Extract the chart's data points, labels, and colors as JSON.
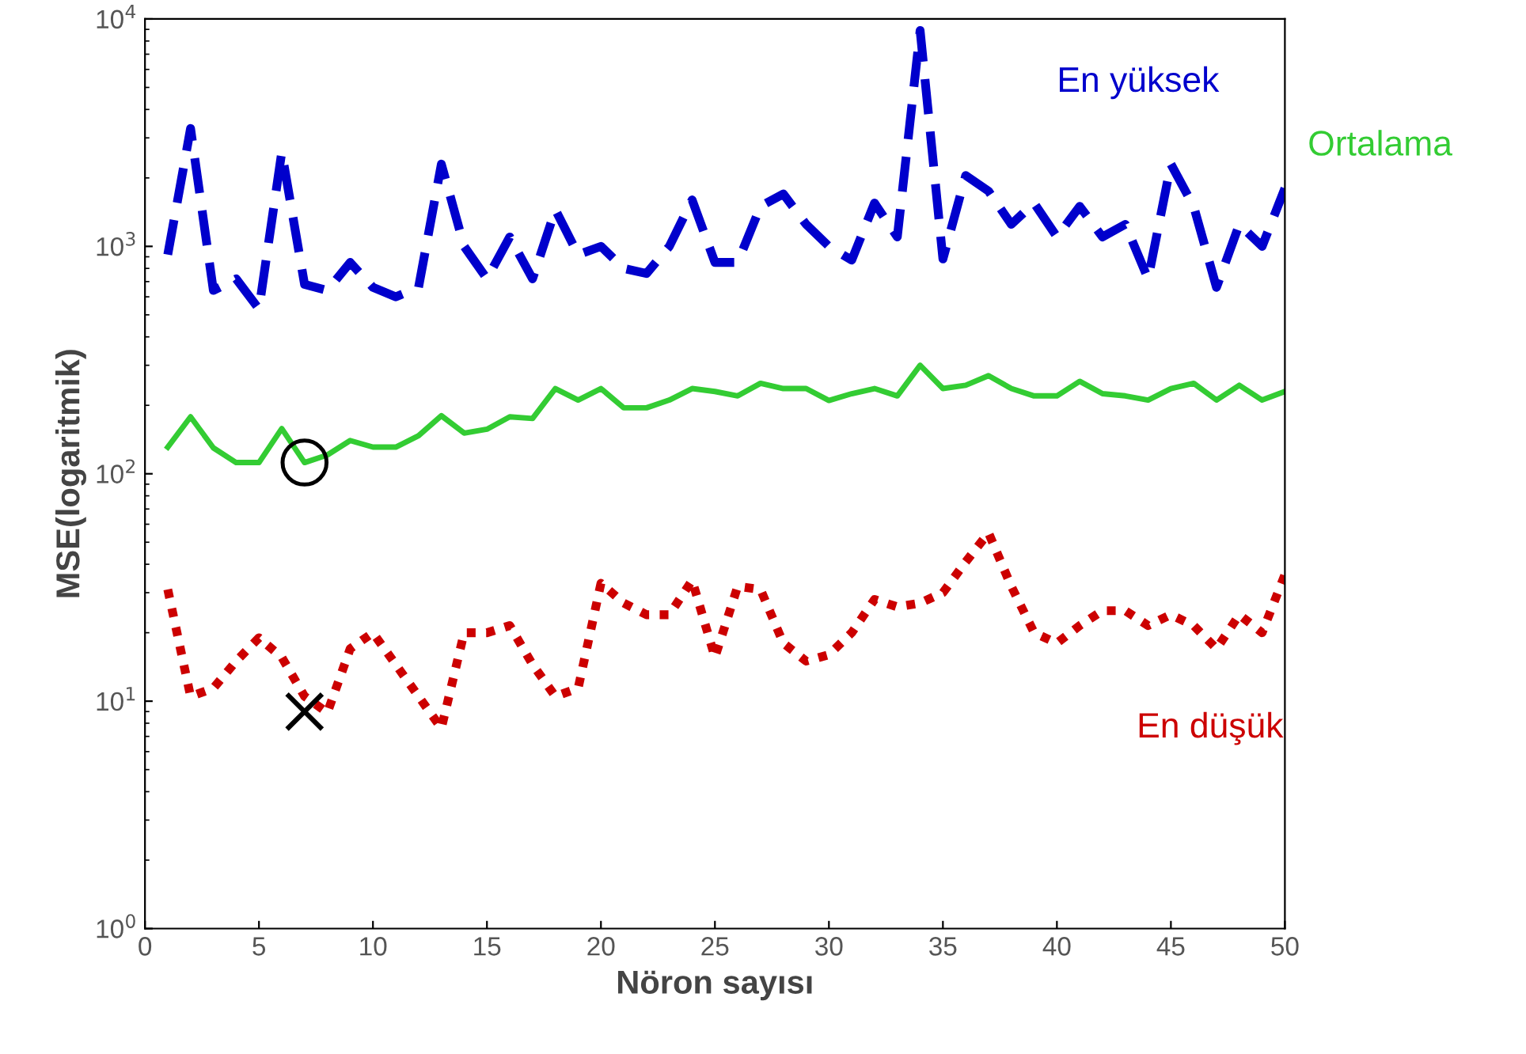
{
  "chart_data": {
    "type": "line",
    "xlabel": "Nöron sayısı",
    "ylabel": "MSE(logaritmik)",
    "log": "y",
    "xlim": [
      0,
      50
    ],
    "xticks": [
      0,
      5,
      10,
      15,
      20,
      25,
      30,
      35,
      40,
      45,
      50
    ],
    "ylim": [
      1,
      10000
    ],
    "yticks": [
      {
        "value": 1,
        "label": "10$^{0}$"
      },
      {
        "value": 10,
        "label": "10$^{1}$"
      },
      {
        "value": 100,
        "label": "10$^{2}$"
      },
      {
        "value": 1000,
        "label": "10$^{3}$"
      },
      {
        "value": 10000,
        "label": "10$^{4}$"
      }
    ],
    "grid": false,
    "legend": false,
    "x": [
      1,
      2,
      3,
      4,
      5,
      6,
      7,
      8,
      9,
      10,
      11,
      12,
      13,
      14,
      15,
      16,
      17,
      18,
      19,
      20,
      21,
      22,
      23,
      24,
      25,
      26,
      27,
      28,
      29,
      30,
      31,
      32,
      33,
      34,
      35,
      36,
      37,
      38,
      39,
      40,
      41,
      42,
      43,
      44,
      45,
      46,
      47,
      48,
      49,
      50
    ],
    "series": [
      {
        "name": "En yüksek",
        "color": "#0000cc",
        "line_style": "dashed",
        "values": [
          920,
          3300,
          640,
          720,
          530,
          2600,
          680,
          640,
          850,
          660,
          600,
          660,
          2300,
          1000,
          720,
          1100,
          720,
          1450,
          920,
          1000,
          800,
          760,
          1000,
          1600,
          850,
          850,
          1500,
          1700,
          1250,
          1000,
          870,
          1550,
          1100,
          8900,
          880,
          2050,
          1750,
          1250,
          1550,
          1100,
          1500,
          1100,
          1250,
          720,
          2300,
          1500,
          660,
          1250,
          1000,
          1800
        ]
      },
      {
        "name": "Ortalama",
        "color": "#33cc33",
        "line_style": "solid",
        "values": [
          131,
          178,
          130,
          112,
          112,
          158,
          112,
          121,
          140,
          131,
          131,
          147,
          180,
          151,
          157,
          178,
          175,
          237,
          211,
          237,
          195,
          195,
          211,
          237,
          230,
          220,
          250,
          237,
          237,
          210,
          225,
          237,
          220,
          300,
          237,
          245,
          270,
          237,
          220,
          220,
          255,
          225,
          220,
          211,
          237,
          250,
          211,
          245,
          211,
          230
        ]
      },
      {
        "name": "En düşük",
        "color": "#cc0000",
        "line_style": "dotted",
        "values": [
          31,
          10.5,
          11.4,
          15,
          19,
          15.6,
          10.5,
          8.9,
          17,
          20,
          14.5,
          10.5,
          7.6,
          20,
          20,
          21.5,
          14.5,
          10.5,
          11.4,
          33,
          27,
          24,
          24,
          34,
          15.6,
          32,
          31,
          18,
          15,
          16,
          20,
          28,
          26,
          27,
          30,
          41,
          55,
          32,
          20,
          18,
          21.5,
          25,
          25,
          21.5,
          24,
          21.5,
          17,
          24,
          20,
          36
        ]
      },
      {
        "type": "scatter",
        "marker": "circle",
        "color": "#000000",
        "x": [
          7
        ],
        "values": [
          112
        ]
      },
      {
        "type": "scatter",
        "marker": "cross",
        "color": "#000000",
        "x": [
          7
        ],
        "values": [
          9
        ]
      }
    ]
  }
}
